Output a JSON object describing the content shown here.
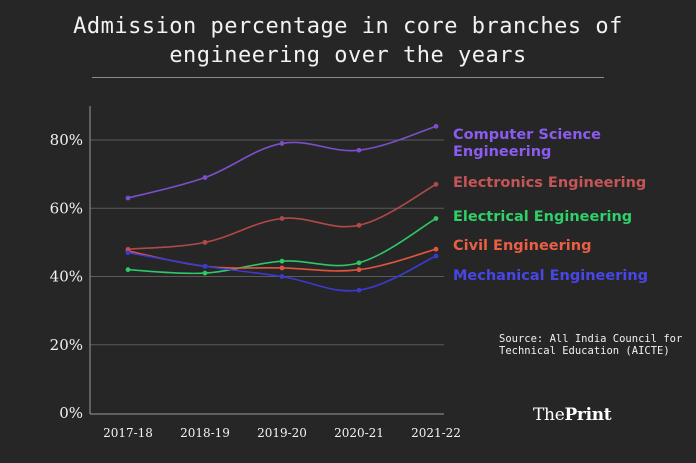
{
  "title_line1": "Admission percentage in core branches of",
  "title_line2": "engineering over the years",
  "chart_data": {
    "type": "line",
    "title": "Admission percentage in core branches of engineering over the years",
    "categories": [
      "2017-18",
      "2018-19",
      "2019-20",
      "2020-21",
      "2021-22"
    ],
    "y_ticks": [
      0,
      20,
      40,
      60,
      80
    ],
    "y_tick_labels": [
      "0%",
      "20%",
      "40%",
      "60%",
      "80%"
    ],
    "ylim": [
      0,
      80
    ],
    "grid": true,
    "legend_placement": "right",
    "series": [
      {
        "name": "Computer Science Engineering",
        "values": [
          63,
          69,
          79,
          77,
          84
        ],
        "color": "#7b4fc9"
      },
      {
        "name": "Electronics Engineering",
        "values": [
          48,
          50,
          57,
          55,
          67
        ],
        "color": "#b0494a"
      },
      {
        "name": "Electrical Engineering",
        "values": [
          42,
          41,
          44.5,
          44,
          57
        ],
        "color": "#2ec866"
      },
      {
        "name": "Civil Engineering",
        "values": [
          47.5,
          43,
          42.5,
          42,
          48
        ],
        "color": "#e0563c"
      },
      {
        "name": "Mechanical Engineering",
        "values": [
          47,
          43,
          40,
          36,
          46
        ],
        "color": "#3b3ad0"
      }
    ]
  },
  "legend": {
    "cse": "Computer Science Engineering",
    "ece": "Electronics Engineering",
    "ee": "Electrical Engineering",
    "civil": "Civil Engineering",
    "mech": "Mechanical Engineering"
  },
  "source_text": "Source: All India Council for Technical Education (AICTE)",
  "brand": {
    "part1": "The",
    "part2": "Print"
  },
  "colors": {
    "background": "#262626",
    "text": "#f2f2f2",
    "grid": "#5a5a5a"
  }
}
